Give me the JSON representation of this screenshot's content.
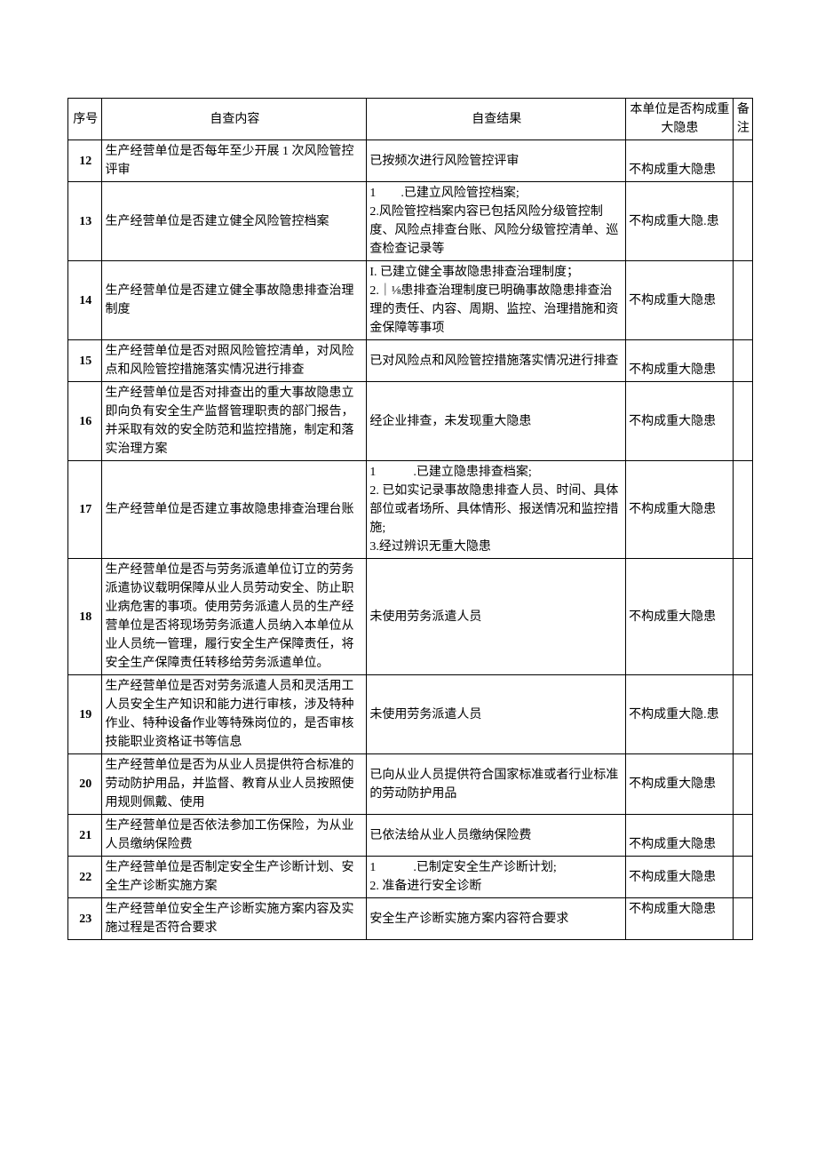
{
  "header": {
    "seq": "序号",
    "content": "自查内容",
    "result": "自查结果",
    "judge": "本单位是否构成重大隐患",
    "remark": "备注"
  },
  "rows": [
    {
      "seq": "12",
      "content": "生产经营单位是否每年至少开展 1 次风险管控评审",
      "result": "已按频次进行风险管控评审",
      "judge": "不构成重大隐患",
      "remark": "",
      "judge_valign": "bottom"
    },
    {
      "seq": "13",
      "content": "生产经营单位是否建立健全风险管控档案",
      "result": "1　　.已建立风险管控档案;\n2.风险管控档案内容已包括风险分级管控制度、风险点排查台账、风险分级管控清单、巡查检查记录等",
      "judge": "不构成重大隐.患",
      "remark": ""
    },
    {
      "seq": "14",
      "content": "生产经营单位是否建立健全事故隐患排查治理制度",
      "result": "I. 已建立健全事故隐患排查治理制度；\n2.｜⅛患排查治理制度已明确事故隐患排查治理的责任、内容、周期、监控、治理措施和资金保障等事项",
      "judge": "不构成重大隐患",
      "remark": ""
    },
    {
      "seq": "15",
      "content": "生产经营单位是否对照风险管控清单，对风险点和风险管控措施落实情况进行排查",
      "result": "已对风险点和风险管控措施落实情况进行排查",
      "judge": "不构成重大隐患",
      "remark": "",
      "content_valign": "top",
      "judge_valign": "bottom"
    },
    {
      "seq": "16",
      "content": "生产经营单位是否对排查出的重大事故隐患立即向负有安全生产监督管理职责的部门报告，并采取有效的安全防范和监控措施，制定和落实治理方案",
      "result": "经企业排查，未发现重大隐患",
      "judge": "不构成重大隐患",
      "remark": "",
      "content_valign": "top"
    },
    {
      "seq": "17",
      "content": "生产经营单位是否建立事故隐患排查治理台账",
      "result": "1　　　.已建立隐患排查档案;\n2. 已如实记录事故隐患排查人员、时间、具体部位或者场所、具体情形、报送情况和监控措施;\n3.经过辨识无重大隐患",
      "judge": "不构成重大隐患",
      "remark": ""
    },
    {
      "seq": "18",
      "content": "生产经营单位是否与劳务派遣单位订立的劳务派遣协议载明保障从业人员劳动安全、防止职业病危害的事项。使用劳务派遣人员的生产经营单位是否将现场劳务派遣人员纳入本单位从业人员统一管理，履行安全生产保障责任，将安全生产保障责任转移给劳务派遣单位。",
      "result": "未使用劳务派遣人员",
      "judge": "不构成重大隐患",
      "remark": ""
    },
    {
      "seq": "19",
      "content": "生产经营单位是否对劳务派遣人员和灵活用工人员安全生产知识和能力进行审核，涉及特种作业、特种设备作业等特殊岗位的，是否审核技能职业资格证书等信息",
      "result": "未使用劳务派遣人员",
      "judge": "不构成重大隐.患",
      "remark": "",
      "content_valign": "top"
    },
    {
      "seq": "20",
      "content": "生产经营单位是否为从业人员提供符合标准的劳动防护用品，并监督、教育从业人员按照使用规则佩戴、使用",
      "result": "已向从业人员提供符合国家标准或者行业标准的劳动防护用品",
      "judge": "不构成重大隐患",
      "remark": ""
    },
    {
      "seq": "21",
      "content": "生产经营单位是否依法参加工伤保险，为从业人员缴纳保险费",
      "result": "已依法给从业人员缴纳保险费",
      "judge": "不构成重大隐患",
      "remark": "",
      "content_valign": "top",
      "judge_valign": "bottom"
    },
    {
      "seq": "22",
      "content": "生产经营单位是否制定安全生产诊断计划、安全生产诊断实施方案",
      "result": "1　　　.已制定安全生产诊断计划;\n2. 准备进行安全诊断",
      "judge": "不构成重大隐患",
      "remark": "",
      "content_valign": "top"
    },
    {
      "seq": "23",
      "content": "生产经营单位安全生产诊断实施方案内容及实施过程是否符合要求",
      "result": "安全生产诊断实施方案内容符合要求",
      "judge": "不构成重大隐患",
      "remark": "",
      "content_valign": "top",
      "judge_valign": "top"
    }
  ]
}
